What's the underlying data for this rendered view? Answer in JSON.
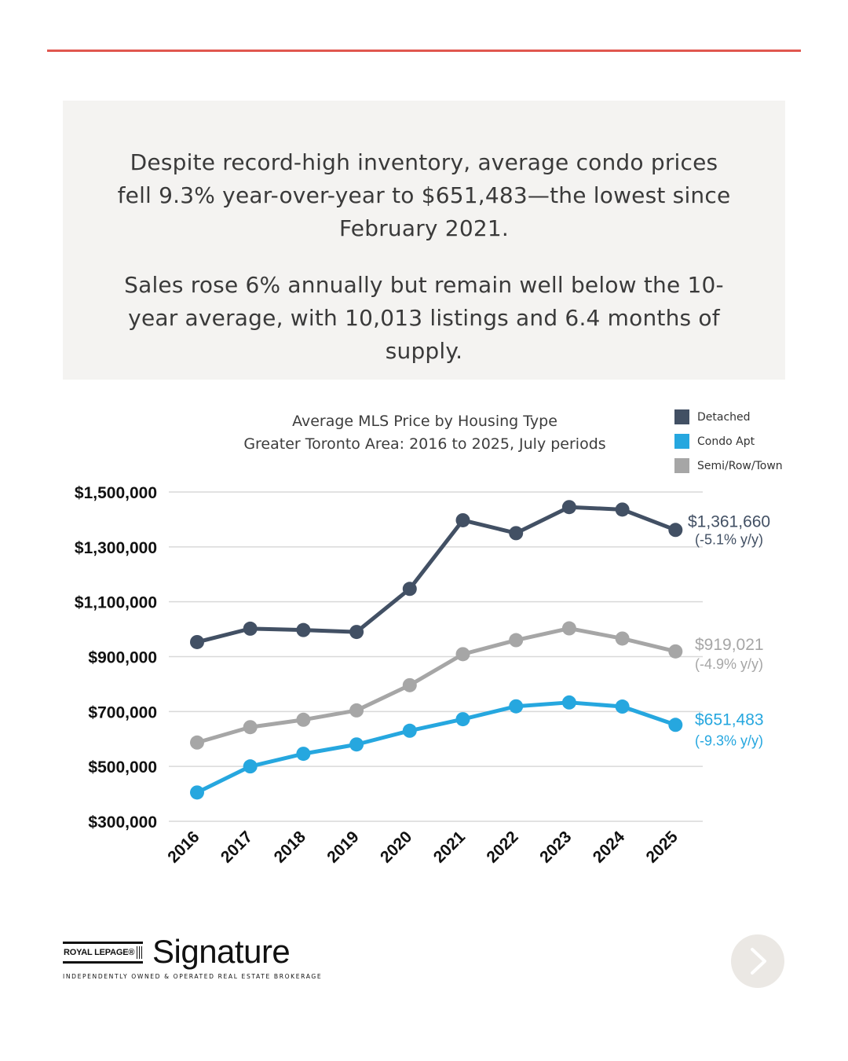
{
  "summary": {
    "paragraph1": "Despite record-high inventory, average condo prices fell 9.3% year-over-year to $651,483—the lowest since February 2021.",
    "paragraph2": "Sales rose 6% annually but remain well below the 10-year average, with 10,013 listings and 6.4 months of supply."
  },
  "chart_data": {
    "type": "line",
    "title": "Average MLS Price by Housing Type",
    "subtitle": "Greater Toronto Area: 2016 to 2025, July periods",
    "x": [
      "2016",
      "2017",
      "2018",
      "2019",
      "2020",
      "2021",
      "2022",
      "2023",
      "2024",
      "2025"
    ],
    "ylim": [
      300000,
      1500000
    ],
    "y_ticks": [
      "$1,500,000",
      "$1,300,000",
      "$1,100,000",
      "$900,000",
      "$700,000",
      "$500,000",
      "$300,000"
    ],
    "y_tick_values": [
      1500000,
      1300000,
      1100000,
      900000,
      700000,
      500000,
      300000
    ],
    "grid": true,
    "legend_position": "top-right",
    "series": [
      {
        "name": "Detached",
        "color": "#425064",
        "values": [
          953000,
          1002000,
          997000,
          990000,
          1147000,
          1397000,
          1350000,
          1445000,
          1436000,
          1361660
        ],
        "end_value_label": "$1,361,660",
        "end_change_label": "(-5.1% y/y)"
      },
      {
        "name": "Condo Apt",
        "color": "#26a7df",
        "values": [
          405000,
          500000,
          546000,
          580000,
          630000,
          672000,
          719000,
          733000,
          718000,
          651483
        ],
        "end_value_label": "$651,483",
        "end_change_label": "(-9.3% y/y)"
      },
      {
        "name": "Semi/Row/Town",
        "color": "#a6a6a6",
        "values": [
          587000,
          643000,
          670000,
          704000,
          796000,
          909000,
          960000,
          1003000,
          966000,
          919021
        ],
        "end_value_label": "$919,021",
        "end_change_label": "(-4.9% y/y)"
      }
    ],
    "legend_order": [
      "Detached",
      "Condo Apt",
      "Semi/Row/Town"
    ]
  },
  "brand": {
    "box_text": "ROYAL LEPAGE®",
    "name": "Signature",
    "tagline": "INDEPENDENTLY OWNED & OPERATED REAL ESTATE BROKERAGE"
  },
  "icons": {
    "next": "chevron-right-icon"
  }
}
